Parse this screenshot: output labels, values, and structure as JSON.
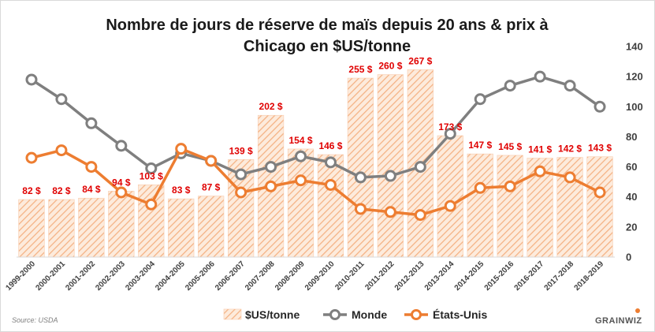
{
  "chart_data": {
    "type": "bar",
    "title_lines": [
      "Nombre de jours de réserve de maïs depuis 20 ans & prix à",
      "Chicago en $US/tonne"
    ],
    "categories": [
      "1999-2000",
      "2000-2001",
      "2001-2002",
      "2002-2003",
      "2003-2004",
      "2004-2005",
      "2005-2006",
      "2006-2007",
      "2007-2008",
      "2008-2009",
      "2009-2010",
      "2010-2011",
      "2011-2012",
      "2012-2013",
      "2013-2014",
      "2014-2015",
      "2015-2016",
      "2016-2017",
      "2017-2018",
      "2018-2019"
    ],
    "price_labels": [
      "82 $",
      "82 $",
      "84 $",
      "94 $",
      "103 $",
      "83 $",
      "87 $",
      "139 $",
      "202 $",
      "154 $",
      "146 $",
      "255 $",
      "260 $",
      "267 $",
      "173 $",
      "147 $",
      "145 $",
      "141 $",
      "142 $",
      "143 $"
    ],
    "series": [
      {
        "name": "$US/tonne",
        "type": "bar",
        "axis": "secondary",
        "values": [
          82,
          82,
          84,
          94,
          103,
          83,
          87,
          139,
          202,
          154,
          146,
          255,
          260,
          267,
          173,
          147,
          145,
          141,
          142,
          143
        ]
      },
      {
        "name": "Monde",
        "type": "line",
        "axis": "primary",
        "values": [
          118,
          105,
          89,
          74,
          59,
          69,
          64,
          55,
          60,
          67,
          63,
          53,
          54,
          60,
          82,
          105,
          114,
          120,
          114,
          100
        ]
      },
      {
        "name": "États-Unis",
        "type": "line",
        "axis": "primary",
        "values": [
          66,
          71,
          60,
          43,
          35,
          72,
          64,
          43,
          47,
          51,
          48,
          32,
          30,
          28,
          34,
          46,
          47,
          57,
          53,
          43
        ]
      }
    ],
    "right_axis_ticks": [
      "140",
      "120",
      "100",
      "80",
      "60",
      "40",
      "20",
      "0"
    ],
    "ylim": [
      0,
      140
    ],
    "ylim_price": [
      0,
      300
    ],
    "colors": {
      "bars": "#f4b183",
      "bar_hatch": "#f8cbad",
      "monde": "#7f7f7f",
      "etats_unis": "#ed7d31",
      "data_labels": "#e00000"
    },
    "legend_position": "bottom",
    "grid": false
  },
  "source": "Source: USDA",
  "brand": "GRAINWIZ"
}
